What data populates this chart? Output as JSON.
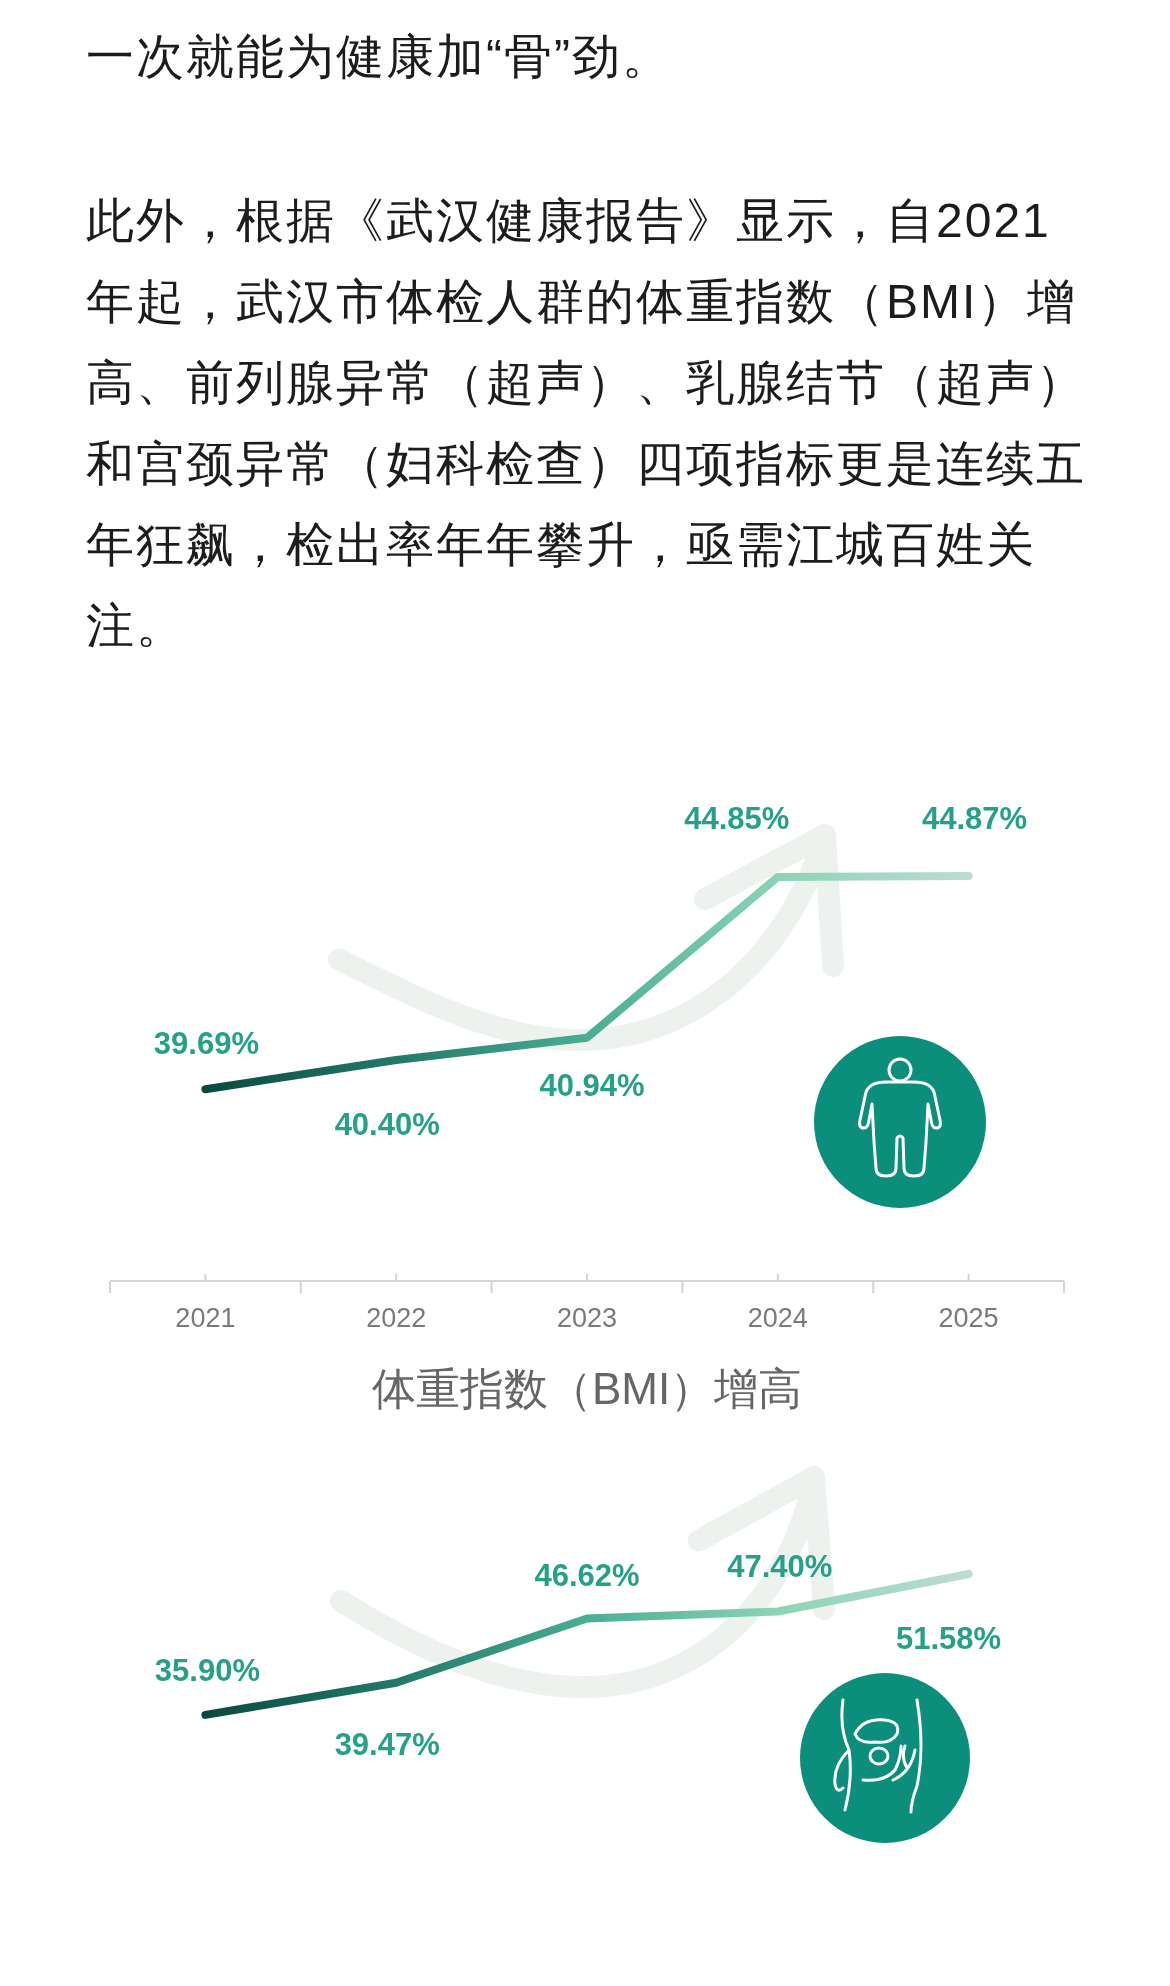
{
  "chart_data": [
    {
      "type": "other",
      "annotations": [
        "一次就能为健康加“骨”劲。",
        "此外，根据《武汉健康报告》显示，自2021年起，武汉市体检人群的体重指数（BMI）增高、前列腺异常（超声）、乳腺结节（超声）和宫颈异常（妇科检查）四项指标更是连续五年狂飙，检出率年年攀升，亟需江城百姓关注。"
      ]
    },
    {
      "type": "line",
      "title": "体重指数（BMI）增高",
      "categories": [
        "2021",
        "2022",
        "2023",
        "2024",
        "2025"
      ],
      "values": [
        39.69,
        40.4,
        40.94,
        44.85,
        44.87
      ],
      "value_labels": [
        "39.69%",
        "40.40%",
        "40.94%",
        "44.85%",
        "44.87%"
      ],
      "colors": [
        "#0b4940",
        "#22796a",
        "#49ae94",
        "#8ad4b7",
        "#bcdcd2"
      ]
    },
    {
      "type": "line",
      "categories": [
        null,
        null,
        null,
        null,
        null
      ],
      "values": [
        35.9,
        39.47,
        46.62,
        47.4,
        51.58
      ],
      "value_labels": [
        "35.90%",
        "39.47%",
        "46.62%",
        "47.40%",
        "51.58%"
      ],
      "colors": [
        "#0b4940",
        "#22796a",
        "#49ae94",
        "#8ad4b7",
        "#bcdcd2"
      ]
    }
  ]
}
